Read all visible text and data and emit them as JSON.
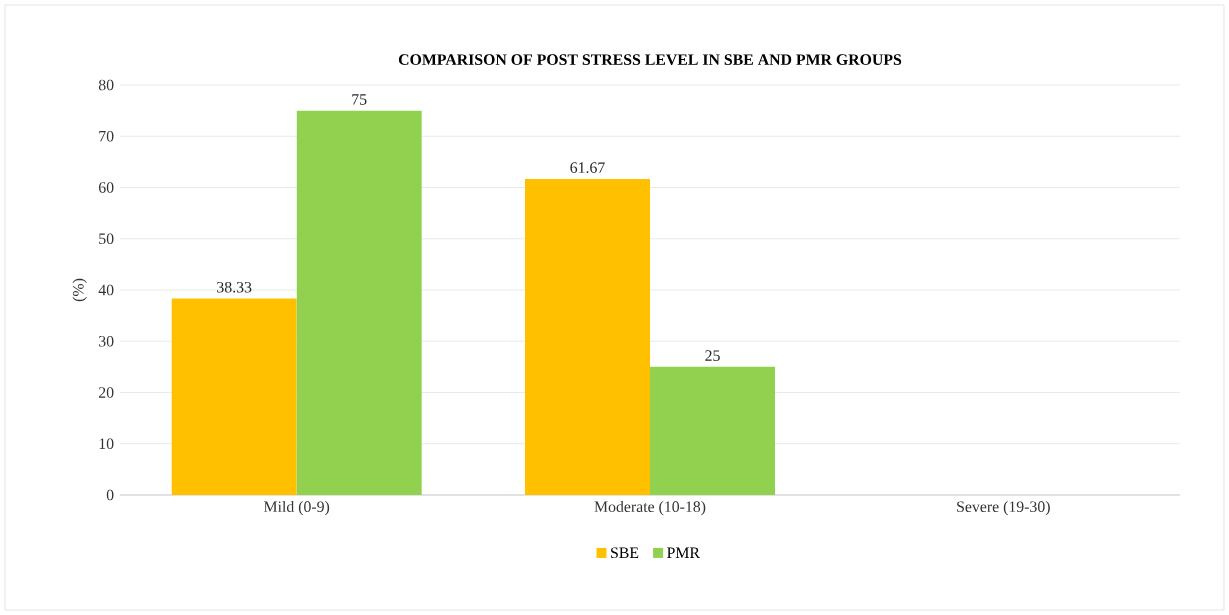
{
  "chart_data": {
    "type": "bar",
    "title": "COMPARISON OF POST STRESS LEVEL IN SBE AND PMR GROUPS",
    "ylabel": "(%)",
    "categories": [
      "Mild (0-9)",
      "Moderate (10-18)",
      "Severe (19-30)"
    ],
    "series": [
      {
        "name": "SBE",
        "color": "#ffc000",
        "values": [
          38.33,
          61.67,
          null
        ],
        "value_labels": [
          "38.33",
          "61.67",
          null
        ]
      },
      {
        "name": "PMR",
        "color": "#92d050",
        "values": [
          75,
          25,
          null
        ],
        "value_labels": [
          "75",
          "25",
          null
        ]
      }
    ],
    "ylim": [
      0,
      80
    ],
    "yticks": [
      0,
      10,
      20,
      30,
      40,
      50,
      60,
      70,
      80
    ],
    "grid": "y",
    "legend": "bottom"
  }
}
